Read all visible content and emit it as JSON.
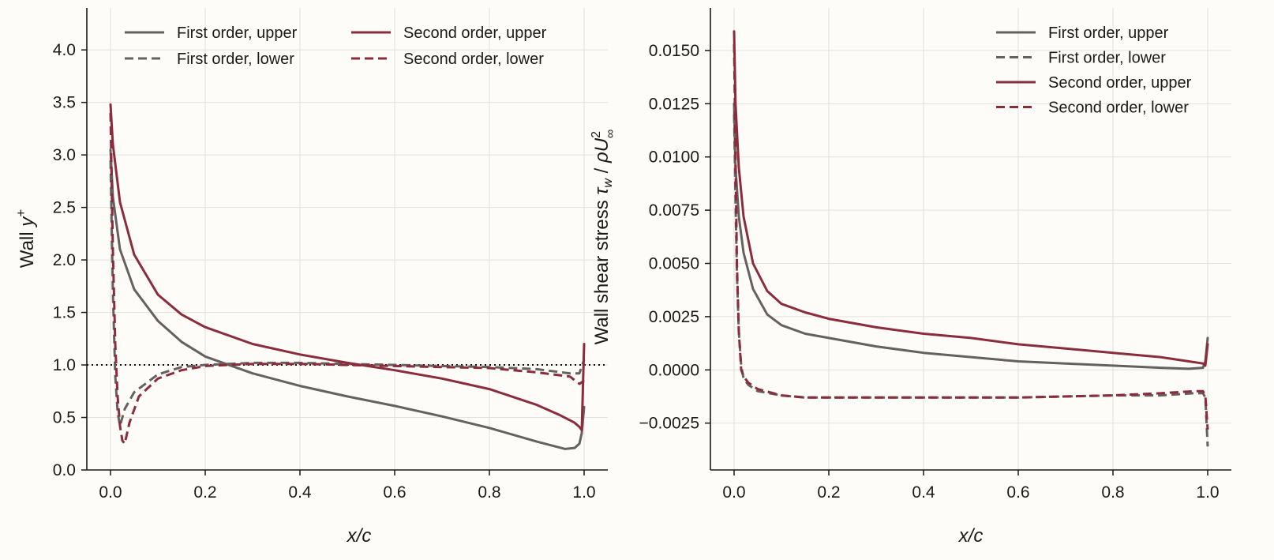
{
  "colors": {
    "background": "#fdfcf8",
    "first_order": "#666160",
    "second_order": "#8b2c3c",
    "grid": "#e3e1dd",
    "axis": "#1a1a1a"
  },
  "chart_data": [
    {
      "type": "line",
      "title": "",
      "xlabel": "x/c",
      "ylabel": "Wall y+",
      "xlim": [
        -0.05,
        1.05
      ],
      "ylim": [
        0.0,
        4.4
      ],
      "xticks": [
        0.0,
        0.2,
        0.4,
        0.6,
        0.8,
        1.0
      ],
      "xtick_labels": [
        "0.0",
        "0.2",
        "0.4",
        "0.6",
        "0.8",
        "1.0"
      ],
      "yticks": [
        0.0,
        0.5,
        1.0,
        1.5,
        2.0,
        2.5,
        3.0,
        3.5,
        4.0
      ],
      "ytick_labels": [
        "0.0",
        "0.5",
        "1.0",
        "1.5",
        "2.0",
        "2.5",
        "3.0",
        "3.5",
        "4.0"
      ],
      "grid": true,
      "legend": {
        "position": "top",
        "columns": 2
      },
      "reference_line": {
        "y": 1.0,
        "style": "dotted"
      },
      "series": [
        {
          "name": "First order, upper",
          "color": "#666160",
          "style": "solid",
          "x": [
            0.0,
            0.005,
            0.02,
            0.05,
            0.1,
            0.15,
            0.2,
            0.3,
            0.4,
            0.5,
            0.6,
            0.7,
            0.8,
            0.9,
            0.96,
            0.98,
            0.99,
            0.995,
            1.0
          ],
          "y": [
            3.05,
            2.6,
            2.1,
            1.72,
            1.42,
            1.22,
            1.08,
            0.92,
            0.8,
            0.7,
            0.61,
            0.51,
            0.4,
            0.27,
            0.2,
            0.21,
            0.25,
            0.35,
            0.6
          ]
        },
        {
          "name": "First order, lower",
          "color": "#666160",
          "style": "dashed",
          "x": [
            0.0,
            0.005,
            0.01,
            0.015,
            0.02,
            0.03,
            0.05,
            0.1,
            0.15,
            0.2,
            0.3,
            0.4,
            0.6,
            0.8,
            0.9,
            0.97,
            0.99,
            1.0
          ],
          "y": [
            2.95,
            1.7,
            0.9,
            0.55,
            0.42,
            0.58,
            0.74,
            0.91,
            0.98,
            1.0,
            1.02,
            1.02,
            1.0,
            0.98,
            0.96,
            0.92,
            0.92,
            1.05
          ]
        },
        {
          "name": "Second order, upper",
          "color": "#8b2c3c",
          "style": "solid",
          "x": [
            0.0,
            0.005,
            0.02,
            0.05,
            0.1,
            0.15,
            0.2,
            0.3,
            0.4,
            0.5,
            0.6,
            0.7,
            0.8,
            0.9,
            0.95,
            0.98,
            0.99,
            0.995,
            1.0
          ],
          "y": [
            3.48,
            3.1,
            2.55,
            2.05,
            1.67,
            1.48,
            1.36,
            1.2,
            1.1,
            1.02,
            0.95,
            0.87,
            0.77,
            0.62,
            0.52,
            0.45,
            0.41,
            0.38,
            1.2
          ]
        },
        {
          "name": "Second order, lower",
          "color": "#8b2c3c",
          "style": "dashed",
          "x": [
            0.0,
            0.005,
            0.01,
            0.015,
            0.02,
            0.025,
            0.03,
            0.04,
            0.06,
            0.1,
            0.15,
            0.2,
            0.3,
            0.4,
            0.6,
            0.8,
            0.9,
            0.97,
            0.99,
            1.0
          ],
          "y": [
            3.4,
            2.1,
            1.2,
            0.7,
            0.42,
            0.28,
            0.25,
            0.45,
            0.7,
            0.87,
            0.95,
            0.99,
            1.01,
            1.01,
            0.99,
            0.97,
            0.93,
            0.89,
            0.82,
            0.85
          ]
        }
      ]
    },
    {
      "type": "line",
      "title": "",
      "xlabel": "x/c",
      "ylabel": "Wall shear stress τw / ρU∞²",
      "xlim": [
        -0.05,
        1.05
      ],
      "ylim": [
        -0.0047,
        0.017
      ],
      "xticks": [
        0.0,
        0.2,
        0.4,
        0.6,
        0.8,
        1.0
      ],
      "xtick_labels": [
        "0.0",
        "0.2",
        "0.4",
        "0.6",
        "0.8",
        "1.0"
      ],
      "yticks": [
        -0.0025,
        0.0,
        0.0025,
        0.005,
        0.0075,
        0.01,
        0.0125,
        0.015
      ],
      "ytick_labels": [
        "−0.0025",
        "0.0000",
        "0.0025",
        "0.0050",
        "0.0075",
        "0.0100",
        "0.0125",
        "0.0150"
      ],
      "grid": true,
      "legend": {
        "position": "top-right",
        "columns": 1
      },
      "series": [
        {
          "name": "First order, upper",
          "color": "#666160",
          "style": "solid",
          "x": [
            0.0,
            0.003,
            0.01,
            0.02,
            0.04,
            0.07,
            0.1,
            0.15,
            0.2,
            0.3,
            0.4,
            0.5,
            0.6,
            0.7,
            0.8,
            0.9,
            0.96,
            0.99,
            0.995,
            1.0
          ],
          "y": [
            0.0125,
            0.0095,
            0.0072,
            0.0055,
            0.0038,
            0.0026,
            0.0021,
            0.0017,
            0.0015,
            0.0011,
            0.0008,
            0.0006,
            0.0004,
            0.0003,
            0.0002,
            0.0001,
            5e-05,
            0.0001,
            0.0004,
            0.0015
          ]
        },
        {
          "name": "First order, lower",
          "color": "#666160",
          "style": "dashed",
          "x": [
            0.0,
            0.003,
            0.006,
            0.01,
            0.015,
            0.02,
            0.03,
            0.05,
            0.1,
            0.15,
            0.2,
            0.3,
            0.4,
            0.6,
            0.8,
            0.9,
            0.97,
            0.99,
            0.995,
            1.0
          ],
          "y": [
            0.012,
            0.008,
            0.0045,
            0.0018,
            0.0002,
            -0.0004,
            -0.0007,
            -0.001,
            -0.0012,
            -0.0013,
            -0.0013,
            -0.0013,
            -0.0013,
            -0.0013,
            -0.0012,
            -0.0012,
            -0.0011,
            -0.0011,
            -0.0013,
            -0.0036
          ]
        },
        {
          "name": "Second order, upper",
          "color": "#8b2c3c",
          "style": "solid",
          "x": [
            0.0,
            0.003,
            0.01,
            0.02,
            0.04,
            0.07,
            0.1,
            0.15,
            0.2,
            0.3,
            0.4,
            0.5,
            0.6,
            0.7,
            0.8,
            0.9,
            0.96,
            0.99,
            0.995,
            1.0
          ],
          "y": [
            0.0159,
            0.0125,
            0.0095,
            0.0072,
            0.005,
            0.0037,
            0.0031,
            0.0027,
            0.0024,
            0.002,
            0.0017,
            0.0015,
            0.0012,
            0.001,
            0.0008,
            0.0006,
            0.0004,
            0.0003,
            0.0002,
            0.0012
          ]
        },
        {
          "name": "Second order, lower",
          "color": "#8b2c3c",
          "style": "dashed",
          "x": [
            0.0,
            0.003,
            0.006,
            0.01,
            0.015,
            0.02,
            0.03,
            0.05,
            0.1,
            0.15,
            0.2,
            0.3,
            0.4,
            0.6,
            0.8,
            0.9,
            0.97,
            0.99,
            0.995,
            1.0
          ],
          "y": [
            0.0153,
            0.01,
            0.005,
            0.0018,
            0.0,
            -0.0003,
            -0.0006,
            -0.0009,
            -0.0012,
            -0.0013,
            -0.0013,
            -0.0013,
            -0.0013,
            -0.0013,
            -0.0012,
            -0.0011,
            -0.001,
            -0.001,
            -0.0012,
            -0.0028
          ]
        }
      ]
    }
  ]
}
